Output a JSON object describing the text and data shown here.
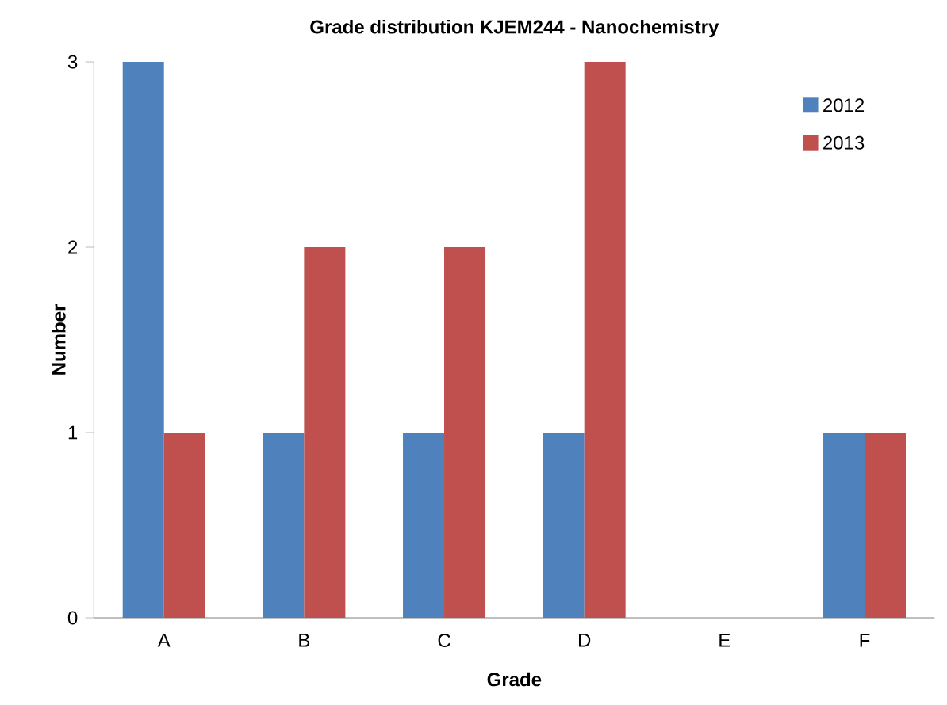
{
  "chart_data": {
    "type": "bar",
    "title": "Grade distribution KJEM244 - Nanochemistry",
    "xlabel": "Grade",
    "ylabel": "Number",
    "categories": [
      "A",
      "B",
      "C",
      "D",
      "E",
      "F"
    ],
    "series": [
      {
        "name": "2012",
        "color": "#4f81bd",
        "values": [
          3,
          1,
          1,
          1,
          0,
          1
        ]
      },
      {
        "name": "2013",
        "color": "#c0504d",
        "values": [
          1,
          2,
          2,
          3,
          0,
          1
        ]
      }
    ],
    "ylim": [
      0,
      3
    ],
    "yticks": [
      0,
      1,
      2,
      3
    ],
    "grid": false,
    "legend": "top right"
  }
}
